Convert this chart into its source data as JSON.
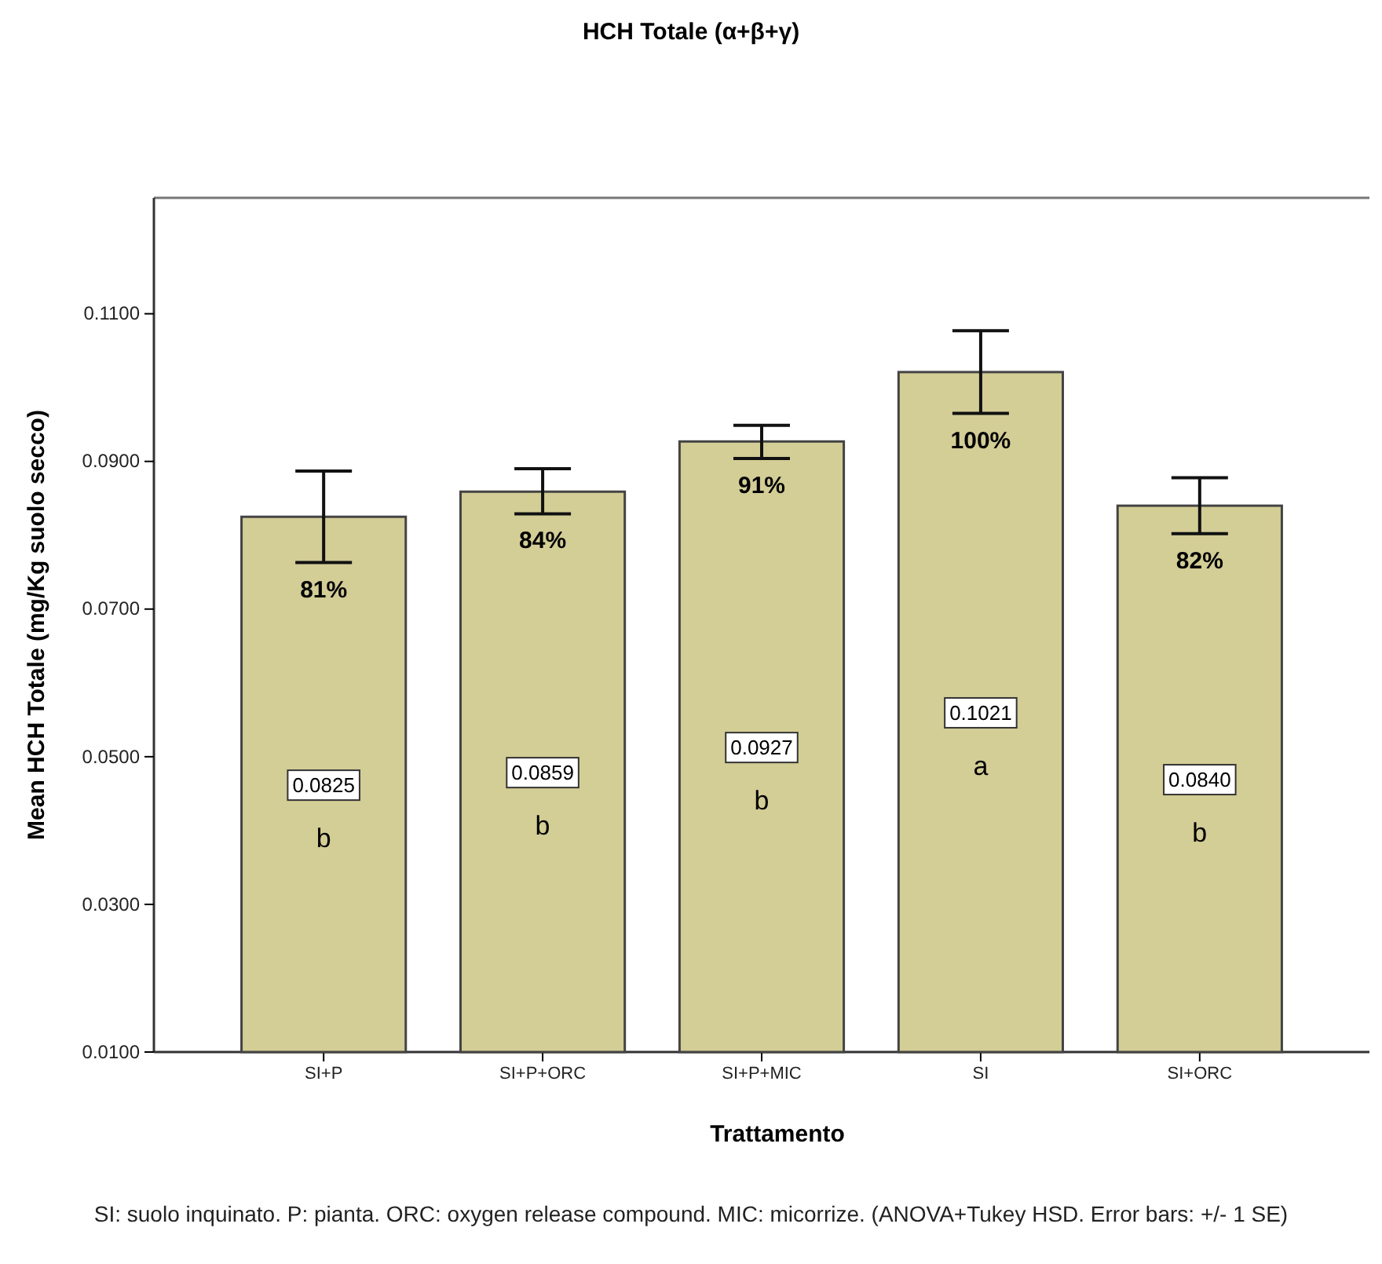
{
  "chart_data": {
    "type": "bar",
    "title": "HCH Totale (α+β+γ)",
    "xlabel": "Trattamento",
    "ylabel": "Mean HCH Totale (mg/Kg suolo secco)",
    "categories": [
      "SI+P",
      "SI+P+ORC",
      "SI+P+MIC",
      "SI",
      "SI+ORC"
    ],
    "values": [
      0.0825,
      0.0859,
      0.0927,
      0.1021,
      0.084
    ],
    "errors": [
      [
        0.0763,
        0.0887
      ],
      [
        0.0829,
        0.089
      ],
      [
        0.0904,
        0.0949
      ],
      [
        0.0965,
        0.1077
      ],
      [
        0.0802,
        0.0878
      ]
    ],
    "color": "#d3cd96",
    "value_labels": [
      "0.0825",
      "0.0859",
      "0.0927",
      "0.1021",
      "0.0840"
    ],
    "ylim": [
      0.01,
      0.1257
    ],
    "yticks": [
      {
        "value": 0.01,
        "label": "0.0100"
      },
      {
        "value": 0.03,
        "label": "0.0300"
      },
      {
        "value": 0.05,
        "label": "0.0500"
      },
      {
        "value": 0.07,
        "label": "0.0700"
      },
      {
        "value": 0.09,
        "label": "0.0900"
      },
      {
        "value": 0.11,
        "label": "0.1100"
      }
    ],
    "grid": false,
    "annotations": [
      "81%",
      "84%",
      "91%",
      "100%",
      "82%",
      "b",
      "b",
      "b",
      "a",
      "b",
      "SI: suolo inquinato. P: pianta. ORC: oxygen release compound. MIC: micorrize. (ANOVA+Tukey HSD. Error bars: +/- 1 SE)"
    ]
  }
}
